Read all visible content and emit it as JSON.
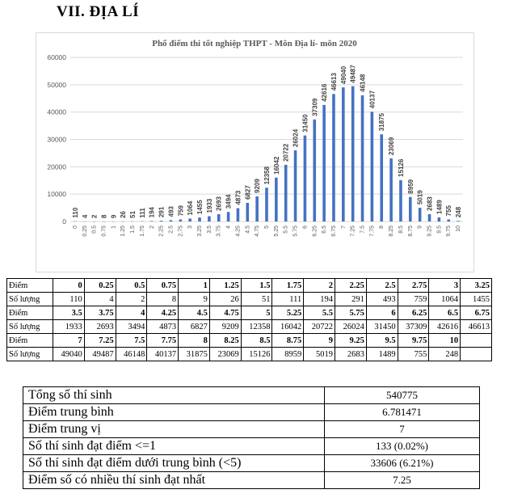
{
  "heading": "VII.   ĐỊA LÍ",
  "chart_data": {
    "type": "bar",
    "title": "Phổ điểm thi tốt nghiệp THPT - Môn Địa lí- môn 2020",
    "xlabel": "",
    "ylabel": "",
    "ylim": [
      0,
      60000
    ],
    "yticks": [
      0,
      10000,
      20000,
      30000,
      40000,
      50000,
      60000
    ],
    "grid": true,
    "color": "#4472c4",
    "categories": [
      "0",
      "0.25",
      "0.5",
      "0.75",
      "1",
      "1.25",
      "1.5",
      "1.75",
      "2",
      "2.25",
      "2.5",
      "2.75",
      "3",
      "3.25",
      "3.5",
      "3.75",
      "4",
      "4.25",
      "4.5",
      "4.75",
      "5",
      "5.25",
      "5.5",
      "5.75",
      "6",
      "6.25",
      "6.5",
      "6.75",
      "7",
      "7.25",
      "7.5",
      "7.75",
      "8",
      "8.25",
      "8.5",
      "8.75",
      "9",
      "9.25",
      "9.5",
      "9.75",
      "10"
    ],
    "values": [
      110,
      4,
      2,
      8,
      9,
      26,
      51,
      111,
      194,
      291,
      493,
      759,
      1064,
      1455,
      1933,
      2693,
      3494,
      4873,
      6827,
      9209,
      12358,
      16042,
      20722,
      26024,
      31450,
      37309,
      42616,
      46613,
      49040,
      49487,
      46148,
      40137,
      31875,
      23069,
      15126,
      8959,
      5019,
      2683,
      1489,
      755,
      248
    ]
  },
  "score_table": {
    "label_score": "Điểm",
    "label_count": "Số lượng",
    "rows": [
      {
        "scores": [
          "0",
          "0.25",
          "0.5",
          "0.75",
          "1",
          "1.25",
          "1.5",
          "1.75",
          "2",
          "2.25",
          "2.5",
          "2.75",
          "3",
          "3.25"
        ],
        "counts": [
          "110",
          "4",
          "2",
          "8",
          "9",
          "26",
          "51",
          "111",
          "194",
          "291",
          "493",
          "759",
          "1064",
          "1455"
        ]
      },
      {
        "scores": [
          "3.5",
          "3.75",
          "4",
          "4.25",
          "4.5",
          "4.75",
          "5",
          "5.25",
          "5.5",
          "5.75",
          "6",
          "6.25",
          "6.5",
          "6.75"
        ],
        "counts": [
          "1933",
          "2693",
          "3494",
          "4873",
          "6827",
          "9209",
          "12358",
          "16042",
          "20722",
          "26024",
          "31450",
          "37309",
          "42616",
          "46613"
        ]
      },
      {
        "scores": [
          "7",
          "7.25",
          "7.5",
          "7.75",
          "8",
          "8.25",
          "8.5",
          "8.75",
          "9",
          "9.25",
          "9.5",
          "9.75",
          "10",
          ""
        ],
        "counts": [
          "49040",
          "49487",
          "46148",
          "40137",
          "31875",
          "23069",
          "15126",
          "8959",
          "5019",
          "2683",
          "1489",
          "755",
          "248",
          ""
        ]
      }
    ]
  },
  "stats": [
    {
      "label": "Tổng số thí sinh",
      "value": "540775"
    },
    {
      "label": "Điểm trung bình",
      "value": "6.781471"
    },
    {
      "label": "Điểm trung vị",
      "value": "7"
    },
    {
      "label": "Số thí sinh đạt điểm <=1",
      "value": "133 (0.02%)"
    },
    {
      "label": "Số thí sinh đạt điểm dưới trung bình (<5)",
      "value": "33606 (6.21%)"
    },
    {
      "label": "Điểm số có nhiều thí sinh đạt nhất",
      "value": "7.25"
    }
  ]
}
